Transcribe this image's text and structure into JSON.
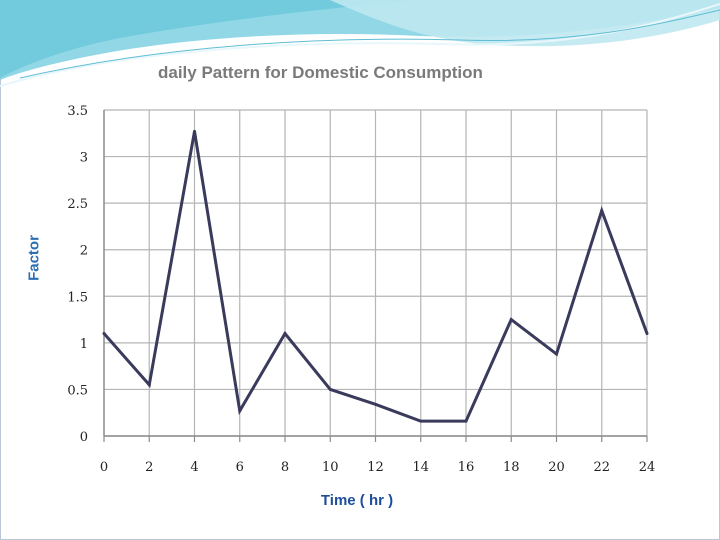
{
  "chart_data": {
    "type": "line",
    "title": "daily Pattern for Domestic Consumption",
    "xlabel": "Time ( hr )",
    "ylabel": "Factor",
    "x": [
      0,
      2,
      4,
      6,
      8,
      10,
      12,
      14,
      16,
      18,
      20,
      22,
      24
    ],
    "series": [
      {
        "name": "Factor",
        "values": [
          1.1,
          0.55,
          3.27,
          0.27,
          1.1,
          0.5,
          0.34,
          0.16,
          0.16,
          1.25,
          0.88,
          2.42,
          1.1
        ]
      }
    ],
    "xticks": [
      "0",
      "2",
      "4",
      "6",
      "8",
      "10",
      "12",
      "14",
      "16",
      "18",
      "20",
      "22",
      "24"
    ],
    "yticks": [
      "0",
      "0.5",
      "1",
      "1.5",
      "2",
      "2.5",
      "3",
      "3.5"
    ],
    "xlim": [
      0,
      24
    ],
    "ylim": [
      0,
      3.5
    ],
    "grid": true,
    "colors": {
      "line": "#3a3a5c",
      "grid": "#b5b5b5",
      "axis": "#8a8a8a"
    }
  }
}
